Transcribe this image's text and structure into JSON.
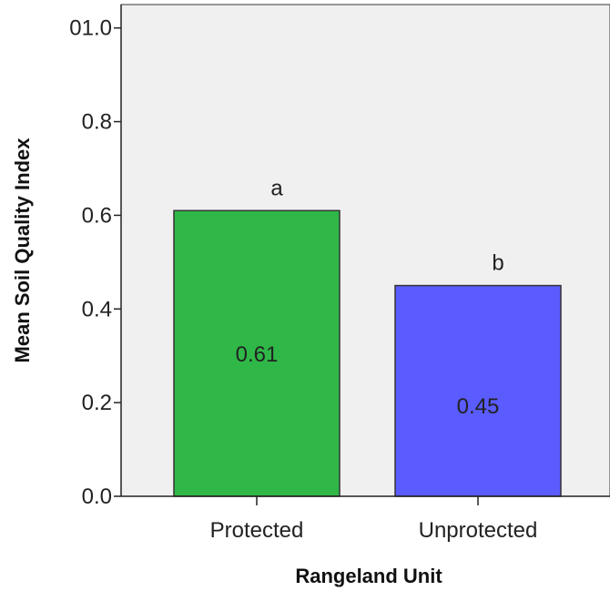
{
  "chart_data": {
    "type": "bar",
    "title": "",
    "xlabel": "Rangeland Unit",
    "ylabel": "Mean Soil Quality Index",
    "categories": [
      "Protected",
      "Unprotected"
    ],
    "values": [
      0.61,
      0.45
    ],
    "value_labels": [
      "0.61",
      "0.45"
    ],
    "significance_letters": [
      "a",
      "b"
    ],
    "bar_colors": [
      "#2fb847",
      "#5a5cff"
    ],
    "yticks": [
      {
        "value": 0.0,
        "label": "0.0"
      },
      {
        "value": 0.2,
        "label": "0.2"
      },
      {
        "value": 0.4,
        "label": "0.4"
      },
      {
        "value": 0.6,
        "label": "0.6"
      },
      {
        "value": 0.8,
        "label": "0.8"
      },
      {
        "value": 1.0,
        "label": "01.0"
      }
    ],
    "ylim": [
      0,
      1.05
    ],
    "grid": false,
    "plot_background": "#f0f0f0"
  }
}
